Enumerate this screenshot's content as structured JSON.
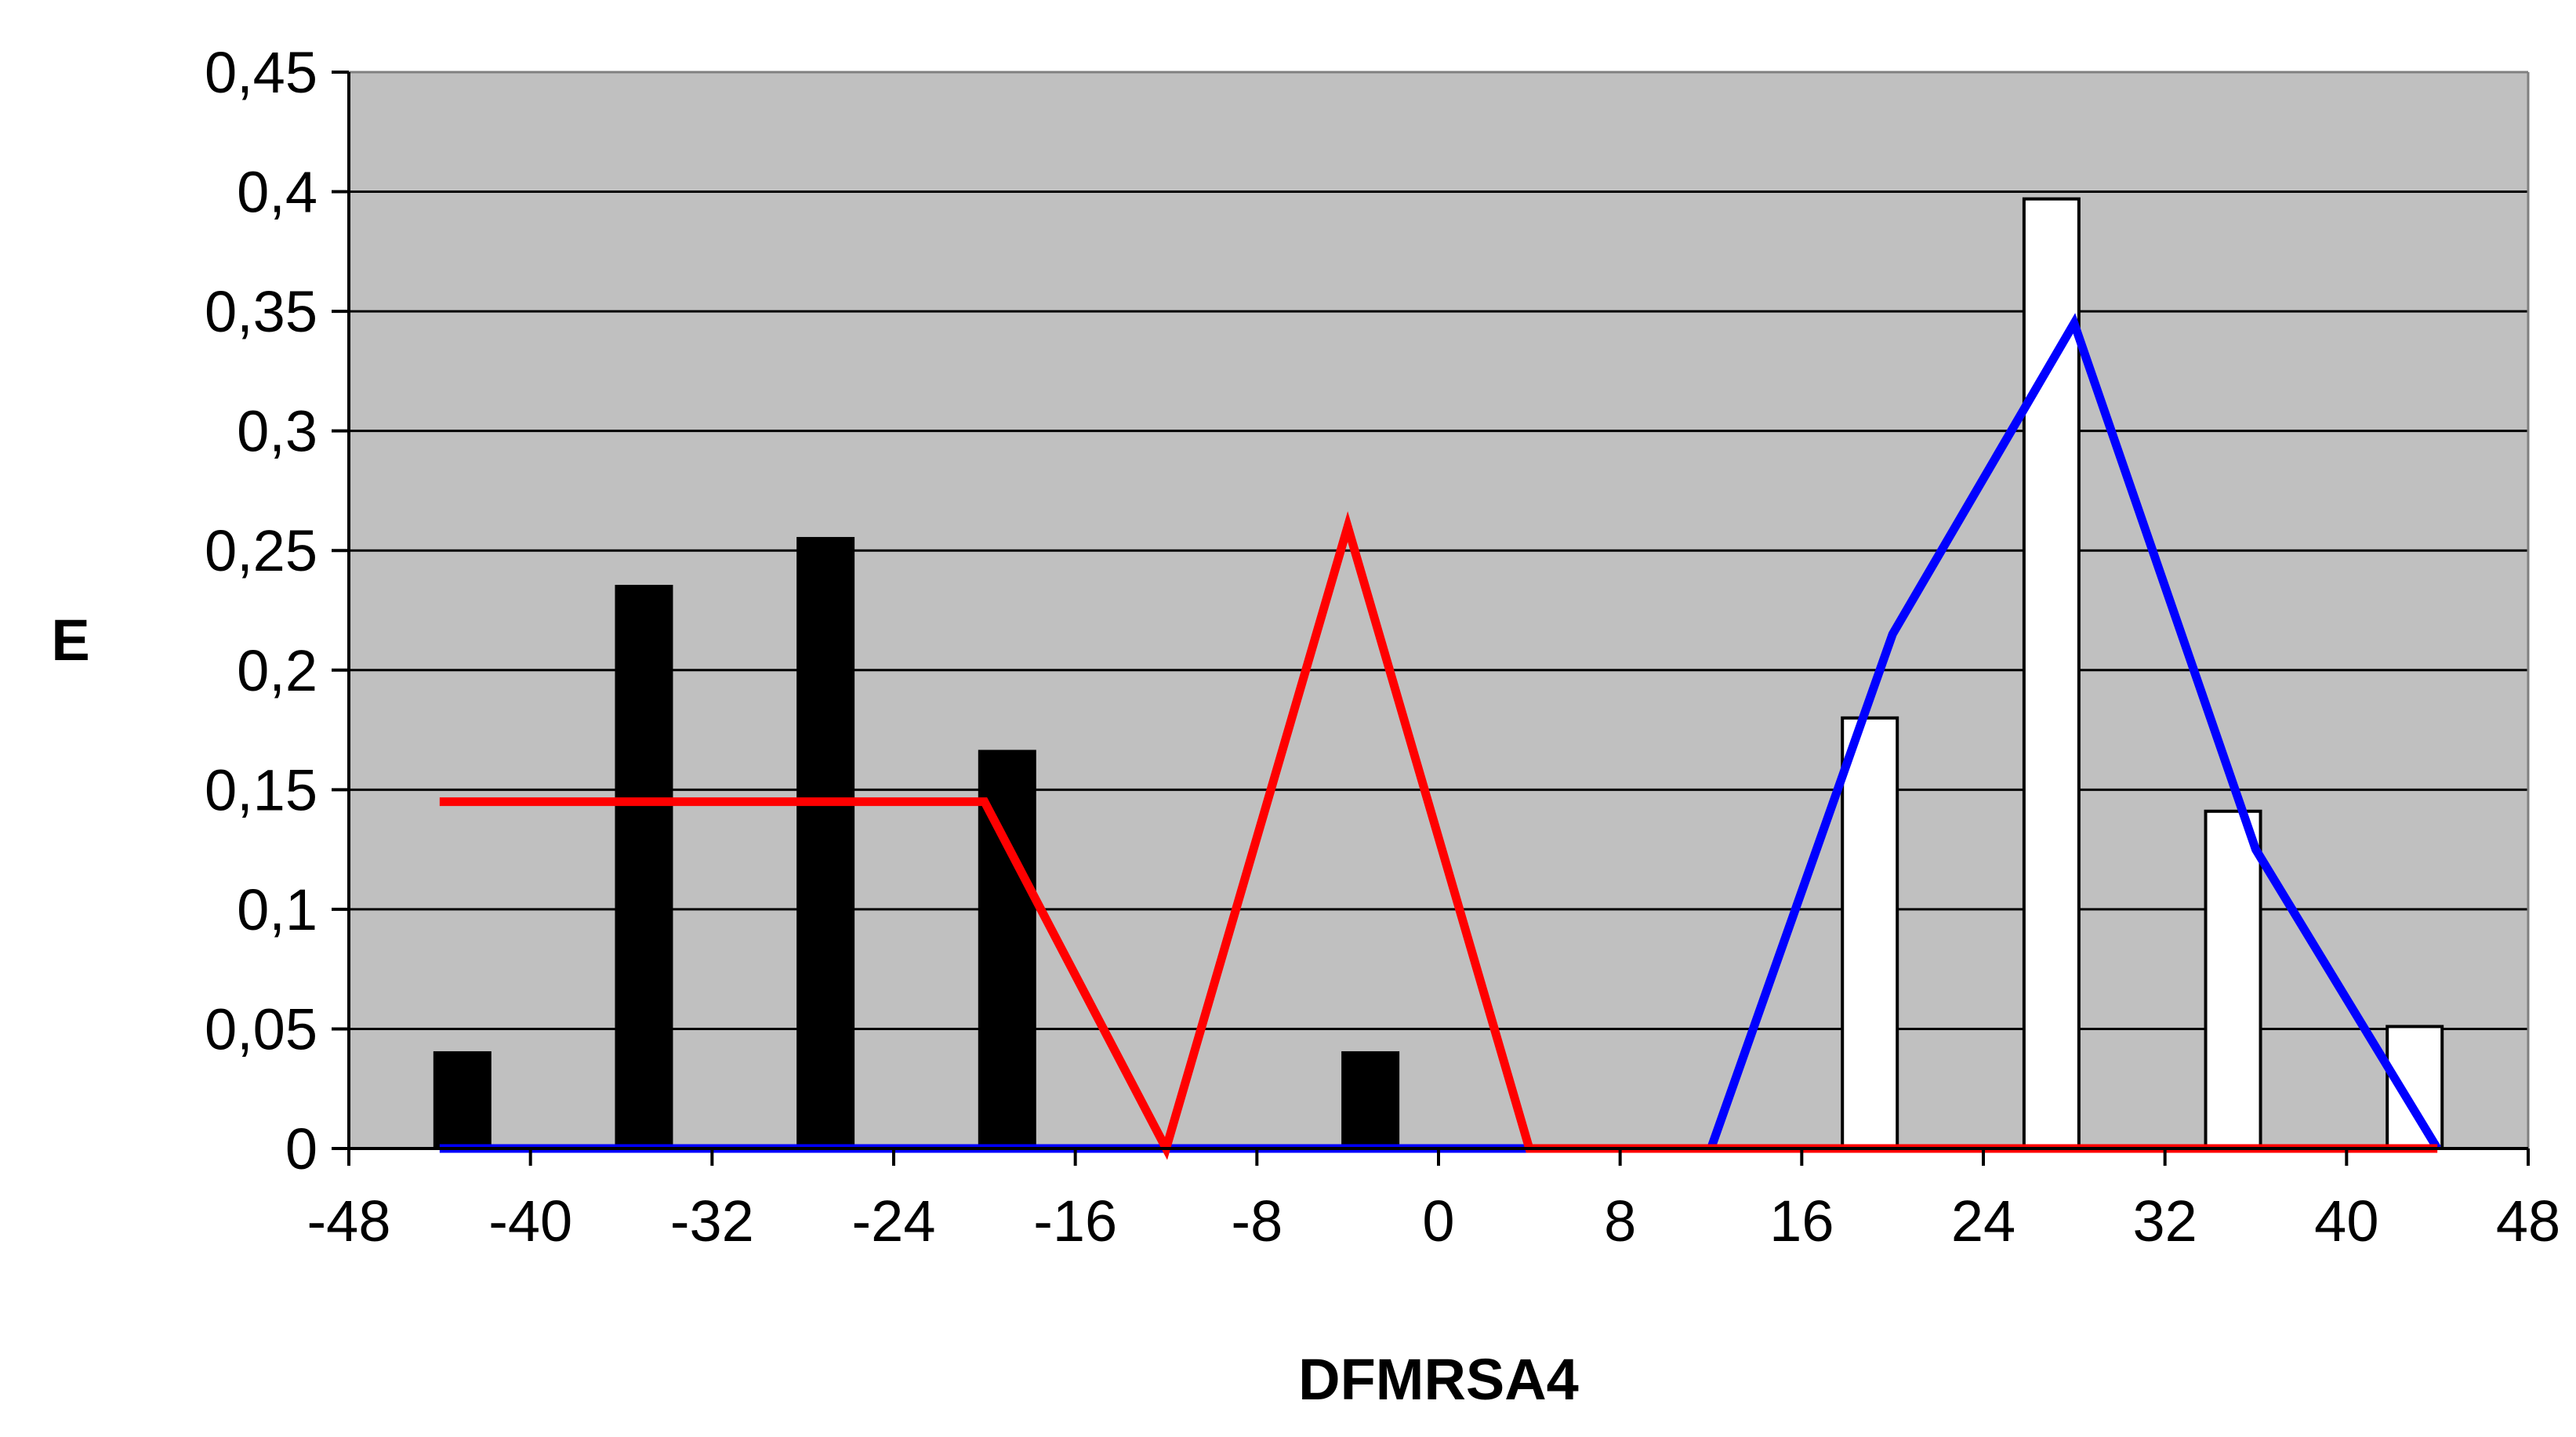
{
  "chart_data": {
    "type": "bar",
    "title": "",
    "xlabel": "DFMRSA4",
    "ylabel": "E",
    "xlim": [
      -48,
      48
    ],
    "ylim": [
      0,
      0.45
    ],
    "x_ticks": [
      -48,
      -40,
      -32,
      -24,
      -16,
      -8,
      0,
      8,
      16,
      24,
      32,
      40,
      48
    ],
    "x_tick_labels": [
      "-48",
      "-40",
      "-32",
      "-24",
      "-16",
      "-8",
      "0",
      "8",
      "16",
      "24",
      "32",
      "40",
      "48"
    ],
    "y_ticks": [
      0,
      0.05,
      0.1,
      0.15,
      0.2,
      0.25,
      0.3,
      0.35,
      0.4,
      0.45
    ],
    "y_tick_labels": [
      "0",
      "0,05",
      "0,1",
      "0,15",
      "0,2",
      "0,25",
      "0,3",
      "0,35",
      "0,4",
      "0,45"
    ],
    "grid": "horizontal",
    "background": "#c0c0c0",
    "bar_series": [
      {
        "color": "#000000",
        "bars": [
          {
            "x": -43,
            "y": 0.04
          },
          {
            "x": -35,
            "y": 0.235
          },
          {
            "x": -27,
            "y": 0.255
          },
          {
            "x": -19,
            "y": 0.166
          },
          {
            "x": -3,
            "y": 0.04
          }
        ]
      },
      {
        "color": "#ffffff",
        "bars": [
          {
            "x": 19,
            "y": 0.18
          },
          {
            "x": 27,
            "y": 0.397
          },
          {
            "x": 35,
            "y": 0.141
          },
          {
            "x": 43,
            "y": 0.051
          }
        ]
      }
    ],
    "line_series": [
      {
        "color": "#0000ff",
        "x": [
          -44,
          12,
          20,
          28,
          36,
          44
        ],
        "y": [
          0,
          0,
          0.215,
          0.345,
          0.125,
          0
        ]
      },
      {
        "color": "#ff0000",
        "x": [
          -44,
          -20,
          -12,
          -4,
          4,
          44
        ],
        "y": [
          0.145,
          0.145,
          0,
          0.26,
          0,
          0
        ]
      }
    ]
  }
}
